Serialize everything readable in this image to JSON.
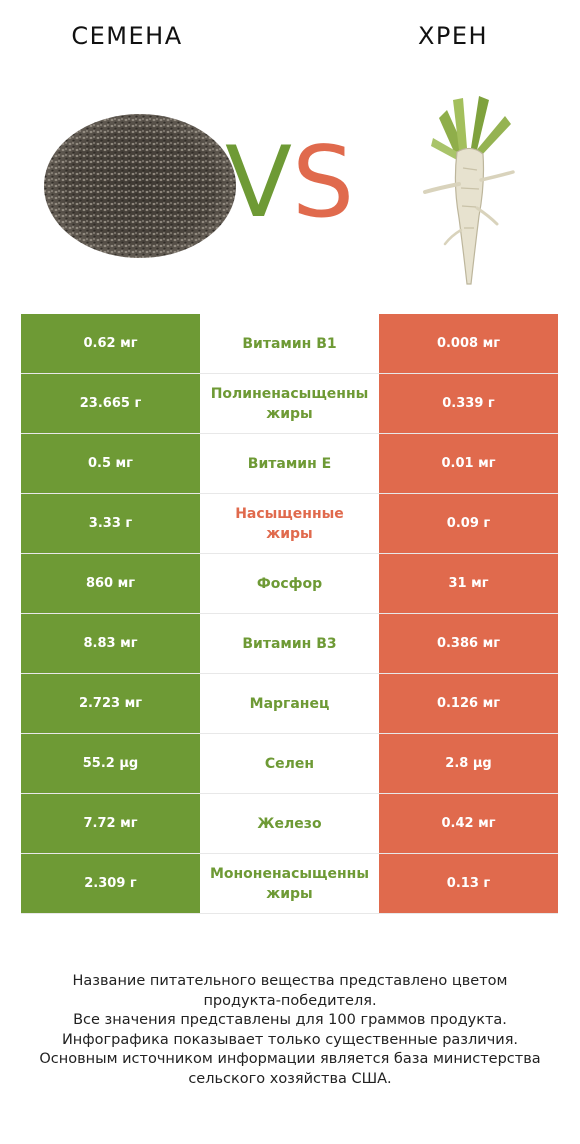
{
  "header": {
    "left_title": "СЕМЕНА",
    "right_title": "ХРЕН",
    "vs_v": "V",
    "vs_s": "S"
  },
  "colors": {
    "winner_left": "#6e9a35",
    "winner_right": "#e06a4d"
  },
  "rows": [
    {
      "left": "0.62 мг",
      "nutrient_lines": [
        "Витамин B1"
      ],
      "right": "0.008 мг",
      "winner": "left"
    },
    {
      "left": "23.665 г",
      "nutrient_lines": [
        "Полиненасыщенны",
        "жиры"
      ],
      "right": "0.339 г",
      "winner": "left"
    },
    {
      "left": "0.5 мг",
      "nutrient_lines": [
        "Витамин E"
      ],
      "right": "0.01 мг",
      "winner": "left"
    },
    {
      "left": "3.33 г",
      "nutrient_lines": [
        "Насыщенные",
        "жиры"
      ],
      "right": "0.09 г",
      "winner": "right"
    },
    {
      "left": "860 мг",
      "nutrient_lines": [
        "Фосфор"
      ],
      "right": "31 мг",
      "winner": "left"
    },
    {
      "left": "8.83 мг",
      "nutrient_lines": [
        "Витамин B3"
      ],
      "right": "0.386 мг",
      "winner": "left"
    },
    {
      "left": "2.723 мг",
      "nutrient_lines": [
        "Марганец"
      ],
      "right": "0.126 мг",
      "winner": "left"
    },
    {
      "left": "55.2 µg",
      "nutrient_lines": [
        "Селен"
      ],
      "right": "2.8 µg",
      "winner": "left"
    },
    {
      "left": "7.72 мг",
      "nutrient_lines": [
        "Железо"
      ],
      "right": "0.42 мг",
      "winner": "left"
    },
    {
      "left": "2.309 г",
      "nutrient_lines": [
        "Мононенасыщенны",
        "жиры"
      ],
      "right": "0.13 г",
      "winner": "left"
    }
  ],
  "footnote": [
    "Название питательного вещества представлено цветом",
    "продукта-победителя.",
    "Все значения представлены для 100 граммов продукта.",
    "Инфографика показывает только существенные различия.",
    "Основным источником информации является база министерства",
    "сельского хозяйства США."
  ]
}
